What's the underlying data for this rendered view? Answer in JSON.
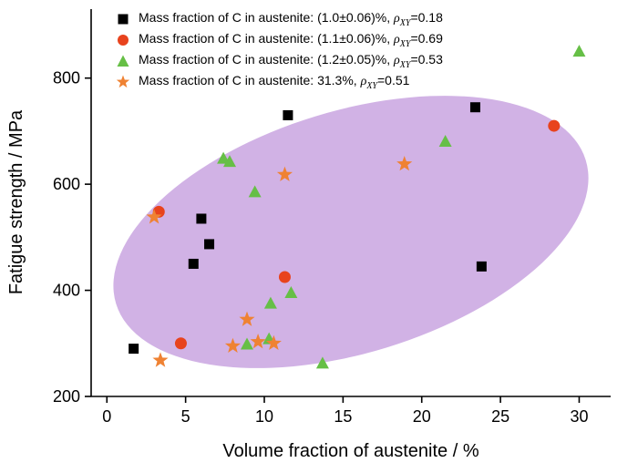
{
  "chart_data": {
    "type": "scatter",
    "title": "",
    "xlabel": "Volume fraction of austenite / %",
    "ylabel": "Fatigue strength / MPa",
    "xlim": [
      -1,
      32
    ],
    "ylim": [
      200,
      930
    ],
    "x_ticks": [
      0,
      5,
      10,
      15,
      20,
      25,
      30
    ],
    "y_ticks": [
      200,
      400,
      600,
      800
    ],
    "grid": false,
    "legend_position": "top-left",
    "rho_symbol": "ρ",
    "rho_sub": "XY",
    "highlight_ellipse": {
      "shape": "ellipse",
      "center": [
        15.5,
        510
      ],
      "rx_x_units": 15.6,
      "ry_y_units": 228,
      "rotation_deg": -17,
      "color": "#c9a5e0",
      "opacity": 0.85
    },
    "series": [
      {
        "name": "Mass fraction of C in austenite: (1.0±0.06)%, ρXY=0.18",
        "label_prefix": "Mass fraction of C in austenite: (1.0±0.06)%, ",
        "rho_value": "=0.18",
        "marker": "square",
        "color": "#000000",
        "points": [
          [
            1.7,
            290
          ],
          [
            5.5,
            450
          ],
          [
            6.0,
            535
          ],
          [
            6.5,
            487
          ],
          [
            11.5,
            730
          ],
          [
            23.4,
            745
          ],
          [
            23.8,
            445
          ]
        ]
      },
      {
        "name": "Mass fraction of C in austenite: (1.1±0.06)%, ρXY=0.69",
        "label_prefix": "Mass fraction of C in austenite: (1.1±0.06)%, ",
        "rho_value": "=0.69",
        "marker": "circle",
        "color": "#e8431d",
        "points": [
          [
            3.3,
            548
          ],
          [
            4.7,
            300
          ],
          [
            11.3,
            425
          ],
          [
            28.4,
            710
          ]
        ]
      },
      {
        "name": "Mass fraction of C in austenite: (1.2±0.05)%, ρXY=0.53",
        "label_prefix": "Mass fraction of C in austenite: (1.2±0.05)%, ",
        "rho_value": "=0.53",
        "marker": "triangle",
        "color": "#66bf46",
        "points": [
          [
            7.4,
            648
          ],
          [
            7.8,
            642
          ],
          [
            9.4,
            585
          ],
          [
            8.9,
            298
          ],
          [
            10.3,
            308
          ],
          [
            10.4,
            375
          ],
          [
            11.7,
            395
          ],
          [
            13.7,
            262
          ],
          [
            21.5,
            680
          ],
          [
            30.0,
            850
          ]
        ]
      },
      {
        "name": "Mass fraction of C in austenite: 31.3%, ρXY=0.51",
        "label_prefix": "Mass fraction of C in austenite: 31.3%, ",
        "rho_value": "=0.51",
        "marker": "star",
        "color": "#ef8233",
        "points": [
          [
            3.0,
            538
          ],
          [
            3.4,
            268
          ],
          [
            8.0,
            295
          ],
          [
            8.9,
            345
          ],
          [
            9.6,
            303
          ],
          [
            10.6,
            300
          ],
          [
            11.3,
            618
          ],
          [
            18.9,
            638
          ]
        ]
      }
    ]
  }
}
